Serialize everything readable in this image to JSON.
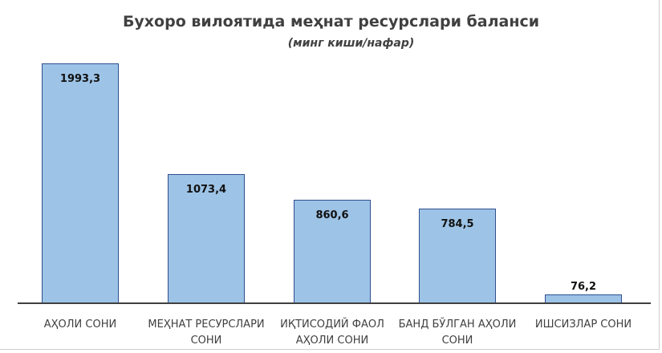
{
  "chart_data": {
    "type": "bar",
    "title": "Бухоро вилоятида меҳнат ресурслари балански",
    "subtitle": "(минг киши/нафар)",
    "categories": [
      "АҲОЛИ СОНИ",
      "МЕҲНАТ РЕСУРСЛАРИ СОНИ",
      "ИҚТИСОДИЙ ФАОЛ АҲОЛИ СОНИ",
      "БАНД БЎЛГАН АҲОЛИ СОНИ",
      "ИШСИЗЛАР СОНИ"
    ],
    "values": [
      1993.3,
      1073.4,
      860.6,
      784.5,
      76.2
    ],
    "value_labels": [
      "1993,3",
      "1073,4",
      "860,6",
      "784,5",
      "76,2"
    ],
    "xlabel": "",
    "ylabel": "",
    "ylim": [
      0,
      2000
    ],
    "grid": false,
    "legend": "none",
    "bar_color": "#9dc3e6",
    "bar_border_color": "#2f4f8f"
  },
  "labels": {
    "title": "Бухоро вилоятида меҳнат ресурслари баланси",
    "subtitle": "(минг киши/нафар)",
    "cats": [
      [
        "АҲОЛИ СОНИ",
        ""
      ],
      [
        "МЕҲНАТ РЕСУРСЛАРИ",
        "СОНИ"
      ],
      [
        "ИҚТИСОДИЙ ФАОЛ",
        "АҲОЛИ СОНИ"
      ],
      [
        "БАНД БЎЛГАН АҲОЛИ",
        "СОНИ"
      ],
      [
        "ИШСИЗЛАР СОНИ",
        ""
      ]
    ]
  }
}
